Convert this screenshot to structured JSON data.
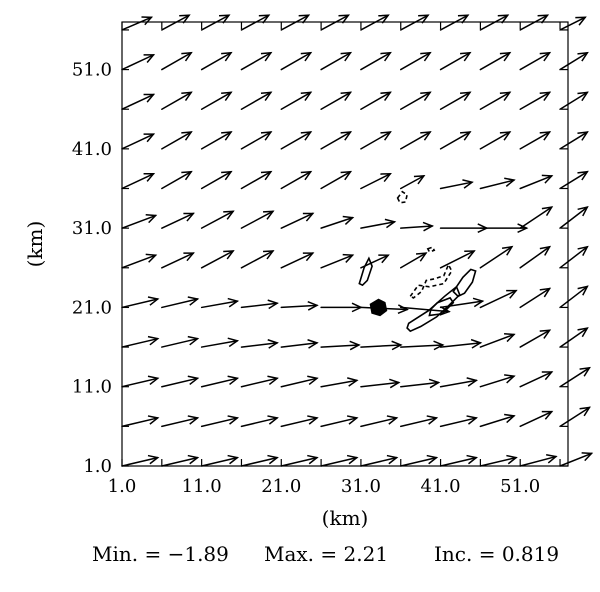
{
  "chart_data": {
    "type": "vector-field",
    "xlabel": "(km)",
    "ylabel": "(km)",
    "xlim": [
      1.0,
      57.0
    ],
    "ylim": [
      1.0,
      57.0
    ],
    "x_ticks": [
      "1.0",
      "11.0",
      "21.0",
      "31.0",
      "41.0",
      "51.0"
    ],
    "y_ticks": [
      "1.0",
      "11.0",
      "21.0",
      "31.0",
      "41.0",
      "51.0"
    ],
    "grid": false,
    "vector_grid": {
      "x": [
        1,
        6,
        11,
        16,
        21,
        26,
        31,
        36,
        41,
        46,
        51,
        56
      ],
      "y": [
        1,
        6,
        11,
        16,
        21,
        26,
        31,
        36,
        41,
        46,
        51,
        56
      ],
      "u": [
        [
          3.4,
          3.4,
          3.4,
          3.4,
          3.4,
          3.4,
          3.4,
          3.4,
          3.4,
          3.4,
          3.4,
          3.0
        ],
        [
          3.4,
          3.4,
          3.4,
          3.4,
          3.4,
          3.4,
          3.4,
          3.4,
          3.4,
          3.2,
          3.0,
          2.8
        ],
        [
          3.4,
          3.4,
          3.4,
          3.4,
          3.4,
          3.4,
          3.6,
          3.6,
          3.4,
          3.2,
          3.0,
          2.8
        ],
        [
          3.4,
          3.4,
          3.4,
          3.4,
          3.4,
          3.6,
          3.8,
          4.0,
          3.8,
          3.2,
          2.8,
          2.6
        ],
        [
          3.4,
          3.4,
          3.4,
          3.4,
          3.4,
          3.8,
          4.4,
          4.6,
          4.0,
          3.4,
          2.8,
          2.6
        ],
        [
          3.2,
          3.0,
          3.0,
          3.0,
          3.0,
          3.0,
          2.6,
          2.4,
          3.2,
          3.0,
          2.8,
          2.6
        ],
        [
          3.2,
          3.0,
          3.0,
          3.0,
          3.0,
          3.0,
          3.2,
          3.0,
          4.4,
          4.4,
          3.0,
          2.6
        ],
        [
          3.0,
          2.8,
          2.8,
          2.8,
          2.8,
          2.8,
          2.8,
          2.2,
          3.0,
          3.2,
          3.0,
          2.6
        ],
        [
          3.0,
          2.8,
          2.8,
          2.8,
          2.8,
          2.8,
          2.8,
          2.8,
          2.8,
          2.8,
          2.8,
          2.6
        ],
        [
          3.0,
          2.8,
          2.8,
          2.8,
          2.8,
          2.8,
          2.8,
          2.8,
          2.8,
          2.8,
          2.8,
          2.6
        ],
        [
          3.0,
          2.8,
          2.8,
          2.8,
          2.8,
          2.8,
          2.8,
          2.8,
          2.8,
          2.8,
          2.8,
          2.6
        ],
        [
          2.8,
          2.6,
          2.6,
          2.6,
          2.6,
          2.6,
          2.6,
          2.6,
          2.6,
          2.6,
          2.6,
          2.4
        ]
      ],
      "v": [
        [
          0.8,
          0.8,
          0.8,
          0.8,
          0.8,
          0.8,
          0.8,
          0.8,
          0.8,
          0.8,
          0.9,
          1.2
        ],
        [
          0.8,
          0.8,
          0.8,
          0.8,
          0.8,
          0.8,
          0.8,
          0.8,
          0.8,
          1.0,
          1.4,
          1.8
        ],
        [
          0.8,
          0.8,
          0.8,
          0.8,
          0.8,
          0.6,
          0.4,
          0.4,
          0.6,
          1.0,
          1.4,
          1.8
        ],
        [
          0.8,
          0.8,
          0.6,
          0.4,
          0.4,
          0.2,
          0.2,
          0.2,
          0.4,
          1.2,
          1.6,
          1.8
        ],
        [
          0.8,
          0.8,
          0.6,
          0.4,
          0.2,
          0.0,
          -0.2,
          -0.4,
          0.6,
          1.6,
          1.8,
          2.0
        ],
        [
          1.2,
          1.4,
          1.6,
          1.6,
          1.4,
          1.2,
          1.2,
          1.4,
          1.6,
          2.0,
          2.0,
          2.0
        ],
        [
          1.2,
          1.4,
          1.6,
          1.6,
          1.4,
          1.0,
          0.6,
          0.2,
          0.0,
          0.0,
          2.0,
          2.0
        ],
        [
          1.4,
          1.6,
          1.6,
          1.6,
          1.6,
          1.6,
          1.4,
          1.2,
          0.6,
          0.8,
          1.2,
          1.6
        ],
        [
          1.4,
          1.6,
          1.6,
          1.6,
          1.6,
          1.6,
          1.6,
          1.6,
          1.6,
          1.6,
          1.6,
          1.6
        ],
        [
          1.4,
          1.6,
          1.6,
          1.6,
          1.6,
          1.6,
          1.6,
          1.6,
          1.6,
          1.6,
          1.6,
          1.6
        ],
        [
          1.4,
          1.6,
          1.6,
          1.6,
          1.6,
          1.6,
          1.6,
          1.6,
          1.6,
          1.6,
          1.6,
          1.6
        ],
        [
          1.2,
          1.4,
          1.4,
          1.4,
          1.4,
          1.4,
          1.4,
          1.4,
          1.4,
          1.4,
          1.4,
          1.2
        ]
      ]
    },
    "contours": [
      {
        "style": "filled",
        "points": [
          [
            32.2,
            21.4
          ],
          [
            33.2,
            22.0
          ],
          [
            34.0,
            21.6
          ],
          [
            34.2,
            20.6
          ],
          [
            33.4,
            20.0
          ],
          [
            32.4,
            20.3
          ]
        ]
      },
      {
        "style": "solid",
        "points": [
          [
            30.8,
            24.0
          ],
          [
            31.4,
            26.0
          ],
          [
            32.0,
            27.2
          ],
          [
            32.4,
            26.2
          ],
          [
            31.8,
            24.4
          ],
          [
            31.2,
            23.8
          ]
        ]
      },
      {
        "style": "solid",
        "points": [
          [
            37.0,
            19.0
          ],
          [
            39.5,
            20.6
          ],
          [
            41.5,
            22.4
          ],
          [
            43.0,
            23.6
          ],
          [
            43.4,
            22.6
          ],
          [
            42.0,
            21.2
          ],
          [
            40.5,
            19.8
          ],
          [
            38.5,
            18.6
          ],
          [
            37.2,
            18.0
          ],
          [
            36.8,
            18.4
          ]
        ]
      },
      {
        "style": "solid",
        "points": [
          [
            39.6,
            20.0
          ],
          [
            41.2,
            20.2
          ],
          [
            42.6,
            21.6
          ],
          [
            42.2,
            22.2
          ],
          [
            40.6,
            21.6
          ],
          [
            39.8,
            20.8
          ]
        ]
      },
      {
        "style": "solid",
        "points": [
          [
            42.6,
            23.0
          ],
          [
            43.8,
            24.8
          ],
          [
            44.8,
            25.8
          ],
          [
            45.4,
            25.6
          ],
          [
            45.0,
            24.2
          ],
          [
            44.0,
            22.8
          ],
          [
            43.2,
            22.4
          ]
        ]
      },
      {
        "style": "dashed",
        "points": [
          [
            37.2,
            22.4
          ],
          [
            38.2,
            23.8
          ],
          [
            39.6,
            23.6
          ],
          [
            41.4,
            24.0
          ],
          [
            42.4,
            25.6
          ],
          [
            42.0,
            26.4
          ],
          [
            41.4,
            25.0
          ],
          [
            40.2,
            24.6
          ],
          [
            39.2,
            24.4
          ],
          [
            38.6,
            23.0
          ],
          [
            37.6,
            22.2
          ]
        ]
      },
      {
        "style": "dashed",
        "points": [
          [
            35.6,
            34.8
          ],
          [
            36.2,
            35.6
          ],
          [
            36.8,
            35.2
          ],
          [
            36.6,
            34.3
          ],
          [
            35.9,
            34.2
          ]
        ]
      },
      {
        "style": "dashed",
        "points": [
          [
            39.4,
            28.4
          ],
          [
            40.0,
            28.6
          ],
          [
            40.2,
            28.2
          ],
          [
            39.6,
            28.0
          ]
        ]
      }
    ]
  },
  "stats": {
    "min": "Min. = −1.89",
    "max": "Max. = 2.21",
    "inc": "Inc. = 0.819"
  }
}
